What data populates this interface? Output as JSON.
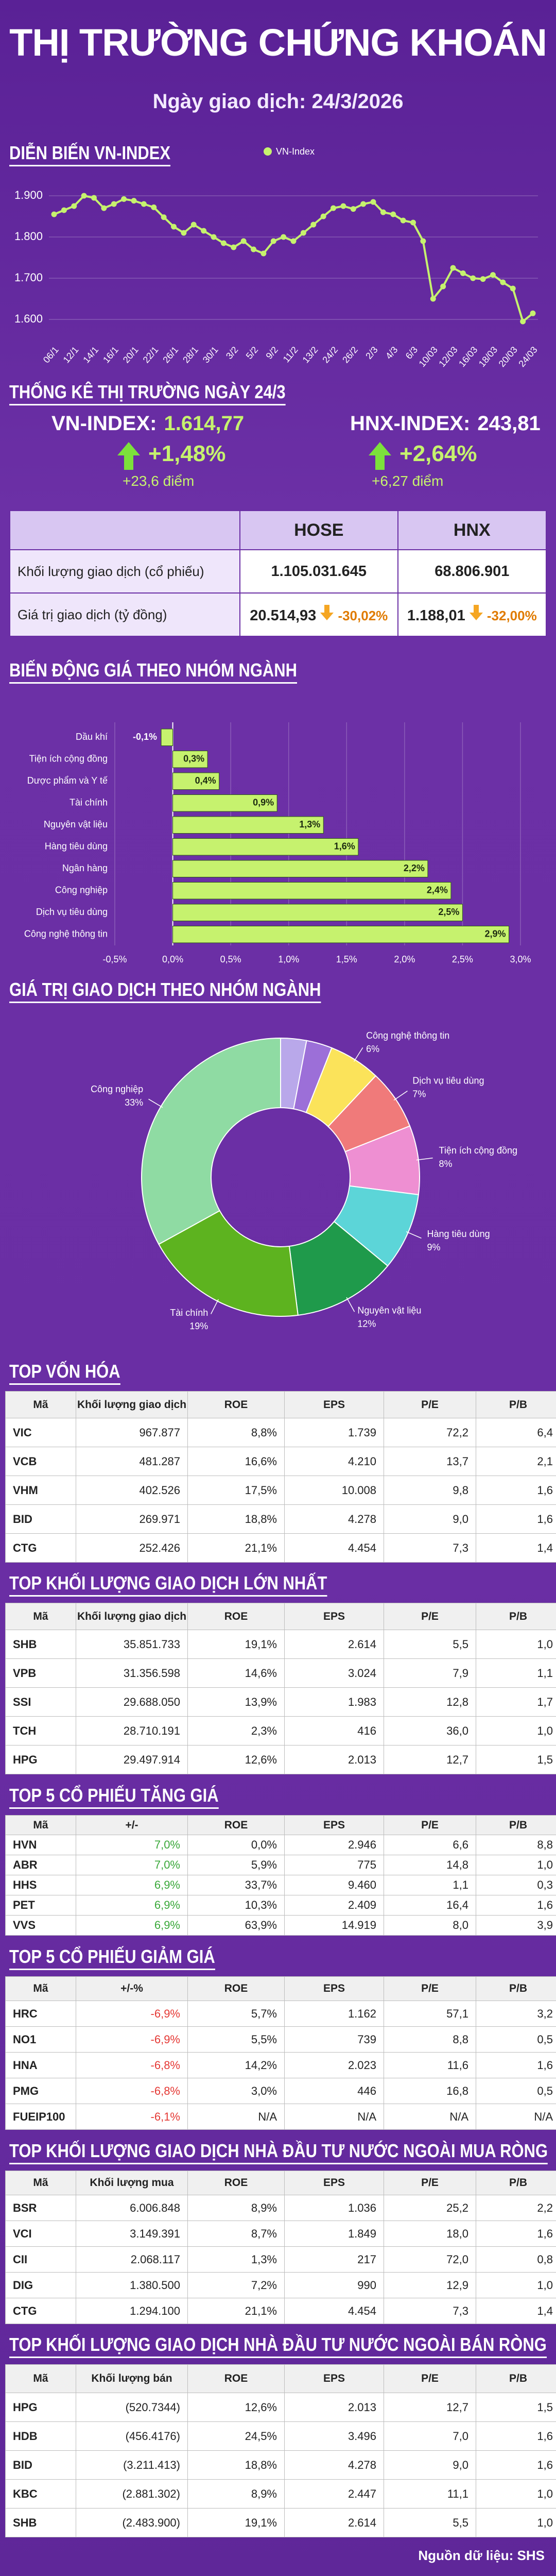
{
  "header": {
    "title": "THỊ TRƯỜNG CHỨNG KHOÁN",
    "subtitle": "Ngày giao dịch: 24/3/2026"
  },
  "sections": {
    "vnindex": "DIỄN BIẾN VN-INDEX",
    "stats": "THỐNG KÊ THỊ TRƯỜNG NGÀY 24/3",
    "sector_change": "BIẾN ĐỘNG GIÁ THEO NHÓM NGÀNH",
    "sector_value": "GIÁ TRỊ GIAO DỊCH THEO NHÓM NGÀNH"
  },
  "chart_data": [
    {
      "type": "line",
      "categories": [
        "06/1",
        null,
        "12/1",
        null,
        "14/1",
        null,
        "16/1",
        null,
        "20/1",
        null,
        "22/1",
        null,
        "26/1",
        null,
        "28/1",
        null,
        "30/1",
        null,
        "3/2",
        null,
        "5/2",
        null,
        "9/2",
        null,
        "11/2",
        null,
        "13/2",
        null,
        "24/2",
        null,
        "26/2",
        null,
        "2/3",
        null,
        "4/3",
        null,
        "6/3",
        null,
        "10/03",
        null,
        "12/03",
        null,
        "16/03",
        null,
        "18/03",
        null,
        "20/03",
        null,
        "24/03"
      ],
      "series": [
        {
          "name": "VN-Index",
          "color": "#c6f26e",
          "values": [
            1855,
            1865,
            1875,
            1900,
            1895,
            1870,
            1880,
            1892,
            1888,
            1880,
            1872,
            1848,
            1825,
            1810,
            1830,
            1815,
            1800,
            1785,
            1775,
            1790,
            1770,
            1760,
            1790,
            1800,
            1790,
            1810,
            1830,
            1850,
            1870,
            1875,
            1868,
            1880,
            1885,
            1860,
            1855,
            1840,
            1835,
            1790,
            1650,
            1680,
            1725,
            1712,
            1700,
            1698,
            1708,
            1690,
            1675,
            1595,
            1614.77
          ]
        }
      ],
      "ylim": [
        1550,
        1950
      ],
      "yticks": [
        {
          "value": 1600,
          "label": "1.600"
        },
        {
          "value": 1700,
          "label": "1.700"
        },
        {
          "value": 1800,
          "label": "1.800"
        },
        {
          "value": 1900,
          "label": "1.900"
        }
      ],
      "grid": true,
      "legend": "top"
    },
    {
      "type": "bar",
      "orientation": "horizontal",
      "categories": [
        "Dầu khí",
        "Tiện ích cộng đồng",
        "Dược phẩm và Y tế",
        "Tài chính",
        "Nguyên vật liệu",
        "Hàng tiêu dùng",
        "Ngân hàng",
        "Công nghiệp",
        "Dịch vụ tiêu dùng",
        "Công nghệ thông tin"
      ],
      "values": [
        -0.1,
        0.3,
        0.4,
        0.9,
        1.3,
        1.6,
        2.2,
        2.4,
        2.5,
        2.9
      ],
      "value_labels": [
        "-0,1%",
        "0,3%",
        "0,4%",
        "0,9%",
        "1,3%",
        "1,6%",
        "2,2%",
        "2,4%",
        "2,5%",
        "2,9%"
      ],
      "color": "#c6f26e",
      "xlim": [
        -0.5,
        3.0
      ],
      "xticks": [
        {
          "value": -0.5,
          "label": "-0,5%"
        },
        {
          "value": 0,
          "label": "0,0%"
        },
        {
          "value": 0.5,
          "label": "0,5%"
        },
        {
          "value": 1.0,
          "label": "1,0%"
        },
        {
          "value": 1.5,
          "label": "1,5%"
        },
        {
          "value": 2.0,
          "label": "2,0%"
        },
        {
          "value": 2.5,
          "label": "2,5%"
        },
        {
          "value": 3.0,
          "label": "3,0%"
        }
      ],
      "grid": true
    },
    {
      "type": "pie",
      "donut": true,
      "categories": [
        null,
        null,
        "Công nghệ thông tin",
        "Dịch vụ tiêu dùng",
        "Tiện ích cộng đồng",
        "Hàng tiêu dùng",
        "Nguyên vật liệu",
        "Tài chính",
        "Công nghiệp"
      ],
      "values": [
        3,
        3,
        6,
        7,
        8,
        9,
        12,
        19,
        33
      ],
      "value_labels": [
        null,
        null,
        "6%",
        "7%",
        "8%",
        "9%",
        "12%",
        "19%",
        "33%"
      ],
      "colors": [
        "#b9a8ea",
        "#9c6fd8",
        "#fbe35a",
        "#f07a7a",
        "#ee8fd2",
        "#5cd5d8",
        "#1f9a4b",
        "#5db31f",
        "#8fdba3"
      ]
    }
  ],
  "indices": [
    {
      "label": "VN-INDEX:",
      "value": "1.614,77",
      "change_pct": "+1,48%",
      "change_pts": "+23,6 điểm"
    },
    {
      "label": "HNX-INDEX:",
      "value": "243,81",
      "change_pct": "+2,64%",
      "change_pts": "+6,27 điểm"
    }
  ],
  "market_table": {
    "columns": [
      "HOSE",
      "HNX"
    ],
    "rows": [
      {
        "label": "Khối lượng giao dịch (cổ phiếu)",
        "cells": [
          "1.105.031.645",
          "68.806.901"
        ]
      },
      {
        "label": "Giá trị giao dịch (tỷ đồng)",
        "cells": [
          "20.514,93",
          "1.188,01"
        ],
        "changes": [
          "-30,02%",
          "-32,00%"
        ]
      }
    ]
  },
  "tables": [
    {
      "title": "TOP VỐN HÓA",
      "columns": [
        "Mã",
        "Khối lượng giao dịch",
        "ROE",
        "EPS",
        "P/E",
        "P/B"
      ],
      "rows": [
        [
          "VIC",
          "967.877",
          "8,8%",
          "1.739",
          "72,2",
          "6,4"
        ],
        [
          "VCB",
          "481.287",
          "16,6%",
          "4.210",
          "13,7",
          "2,1"
        ],
        [
          "VHM",
          "402.526",
          "17,5%",
          "10.008",
          "9,8",
          "1,6"
        ],
        [
          "BID",
          "269.971",
          "18,8%",
          "4.278",
          "9,0",
          "1,6"
        ],
        [
          "CTG",
          "252.426",
          "21,1%",
          "4.454",
          "7,3",
          "1,4"
        ]
      ]
    },
    {
      "title": "TOP KHỐI LƯỢNG GIAO DỊCH LỚN NHẤT",
      "columns": [
        "Mã",
        "Khối lượng giao dịch",
        "ROE",
        "EPS",
        "P/E",
        "P/B"
      ],
      "rows": [
        [
          "SHB",
          "35.851.733",
          "19,1%",
          "2.614",
          "5,5",
          "1,0"
        ],
        [
          "VPB",
          "31.356.598",
          "14,6%",
          "3.024",
          "7,9",
          "1,1"
        ],
        [
          "SSI",
          "29.688.050",
          "13,9%",
          "1.983",
          "12,8",
          "1,7"
        ],
        [
          "TCH",
          "28.710.191",
          "2,3%",
          "416",
          "36,0",
          "1,0"
        ],
        [
          "HPG",
          "29.497.914",
          "12,6%",
          "2.013",
          "12,7",
          "1,5"
        ]
      ]
    },
    {
      "title": "TOP 5 CỔ PHIẾU TĂNG GIÁ",
      "columns": [
        "Mã",
        "+/-",
        "ROE",
        "EPS",
        "P/E",
        "P/B"
      ],
      "accent_color": "#3aa83a",
      "rows": [
        [
          "HVN",
          "7,0%",
          "0,0%",
          "2.946",
          "6,6",
          "8,8"
        ],
        [
          "ABR",
          "7,0%",
          "5,9%",
          "775",
          "14,8",
          "1,0"
        ],
        [
          "HHS",
          "6,9%",
          "33,7%",
          "9.460",
          "1,1",
          "0,3"
        ],
        [
          "PET",
          "6,9%",
          "10,3%",
          "2.409",
          "16,4",
          "1,6"
        ],
        [
          "VVS",
          "6,9%",
          "63,9%",
          "14.919",
          "8,0",
          "3,9"
        ]
      ]
    },
    {
      "title": "TOP 5 CỔ PHIẾU GIẢM GIÁ",
      "columns": [
        "Mã",
        "+/-%",
        "ROE",
        "EPS",
        "P/E",
        "P/B"
      ],
      "accent_color": "#e53935",
      "rows": [
        [
          "HRC",
          "-6,9%",
          "5,7%",
          "1.162",
          "57,1",
          "3,2"
        ],
        [
          "NO1",
          "-6,9%",
          "5,5%",
          "739",
          "8,8",
          "0,5"
        ],
        [
          "HNA",
          "-6,8%",
          "14,2%",
          "2.023",
          "11,6",
          "1,6"
        ],
        [
          "PMG",
          "-6,8%",
          "3,0%",
          "446",
          "16,8",
          "0,5"
        ],
        [
          "FUEIP100",
          "-6,1%",
          "N/A",
          "N/A",
          "N/A",
          "N/A"
        ]
      ]
    },
    {
      "title": "TOP KHỐI LƯỢNG GIAO DỊCH NHÀ ĐẦU TƯ NƯỚC NGOÀI MUA RÒNG",
      "columns": [
        "Mã",
        "Khối lượng mua",
        "ROE",
        "EPS",
        "P/E",
        "P/B"
      ],
      "rows": [
        [
          "BSR",
          "6.006.848",
          "8,9%",
          "1.036",
          "25,2",
          "2,2"
        ],
        [
          "VCI",
          "3.149.391",
          "8,7%",
          "1.849",
          "18,0",
          "1,6"
        ],
        [
          "CII",
          "2.068.117",
          "1,3%",
          "217",
          "72,0",
          "0,8"
        ],
        [
          "DIG",
          "1.380.500",
          "7,2%",
          "990",
          "12,9",
          "1,0"
        ],
        [
          "CTG",
          "1.294.100",
          "21,1%",
          "4.454",
          "7,3",
          "1,4"
        ]
      ]
    },
    {
      "title": "TOP KHỐI LƯỢNG GIAO DỊCH NHÀ ĐẦU TƯ NƯỚC NGOÀI BÁN RÒNG",
      "columns": [
        "Mã",
        "Khối lượng bán",
        "ROE",
        "EPS",
        "P/E",
        "P/B"
      ],
      "rows": [
        [
          "HPG",
          "(520.7344)",
          "12,6%",
          "2.013",
          "12,7",
          "1,5"
        ],
        [
          "HDB",
          "(456.4176)",
          "24,5%",
          "3.496",
          "7,0",
          "1,6"
        ],
        [
          "BID",
          "(3.211.413)",
          "18,8%",
          "4.278",
          "9,0",
          "1,6"
        ],
        [
          "KBC",
          "(2.881.302)",
          "8,9%",
          "2.447",
          "11,1",
          "1,0"
        ],
        [
          "SHB",
          "(2.483.900)",
          "19,1%",
          "2.614",
          "5,5",
          "1,0"
        ]
      ]
    }
  ],
  "footer": "Nguồn dữ liệu: SHS"
}
